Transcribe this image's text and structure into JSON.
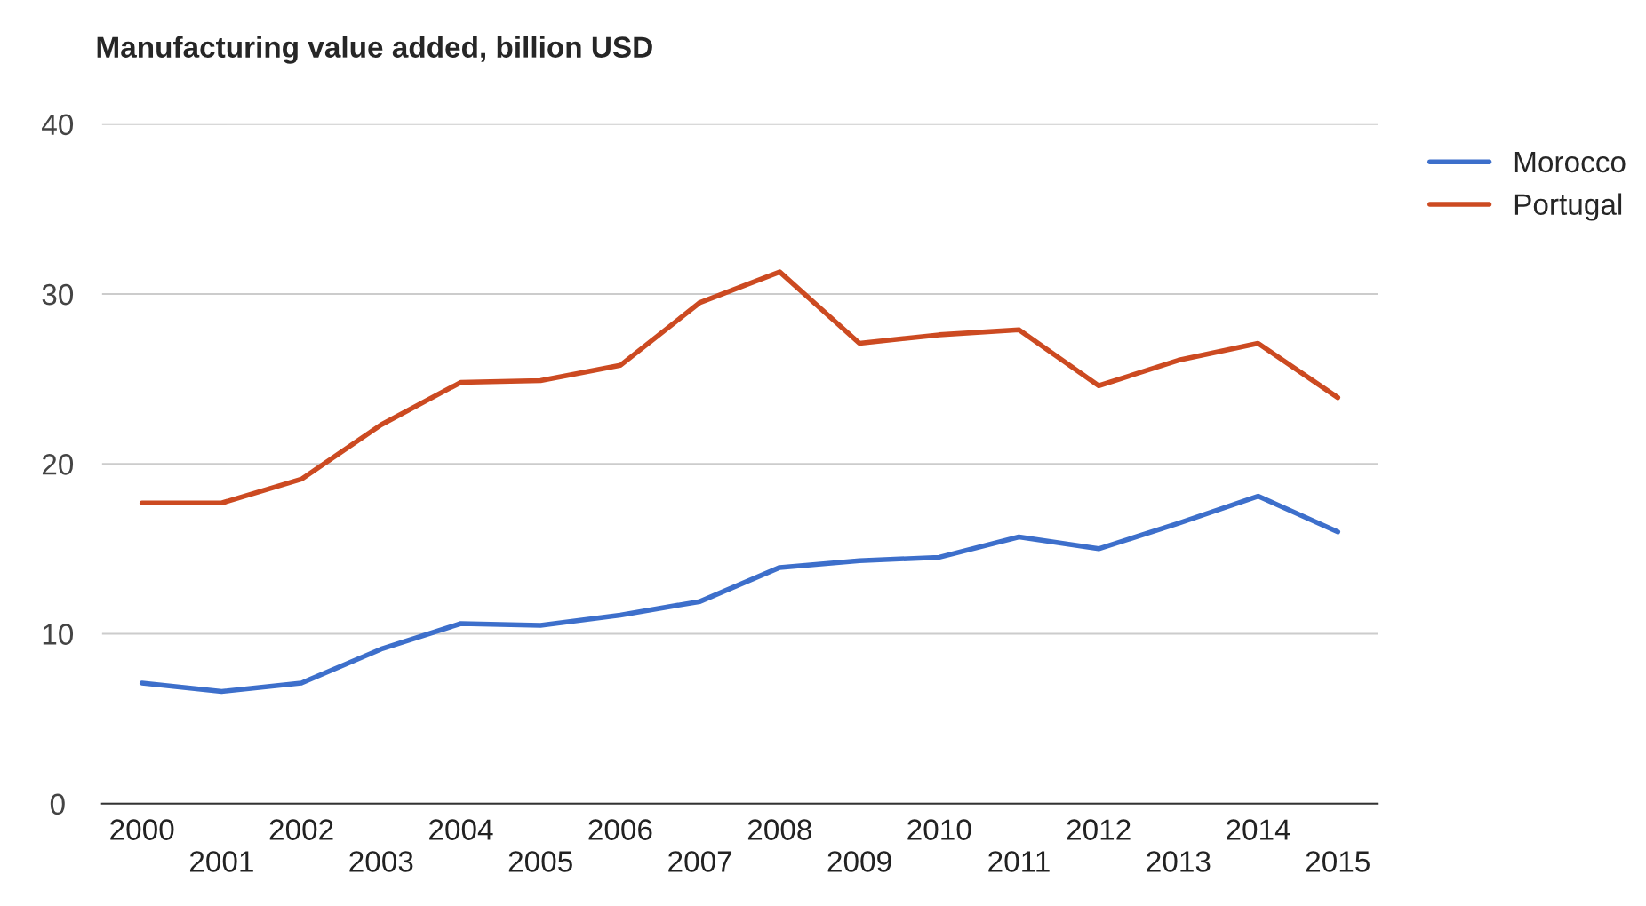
{
  "chart_data": {
    "type": "line",
    "title": "Manufacturing value added, billion USD",
    "categories": [
      "2000",
      "2001",
      "2002",
      "2003",
      "2004",
      "2005",
      "2006",
      "2007",
      "2008",
      "2009",
      "2010",
      "2011",
      "2012",
      "2013",
      "2014",
      "2015"
    ],
    "series": [
      {
        "name": "Morocco",
        "color": "#3d6fcb",
        "values": [
          7.1,
          6.6,
          7.1,
          9.1,
          10.6,
          10.5,
          11.1,
          11.9,
          13.9,
          14.3,
          14.5,
          15.7,
          15.0,
          16.5,
          18.1,
          16.0
        ]
      },
      {
        "name": "Portugal",
        "color": "#cc4a21",
        "values": [
          17.7,
          17.7,
          19.1,
          22.3,
          24.8,
          24.9,
          25.8,
          29.5,
          31.3,
          27.1,
          27.6,
          27.9,
          24.6,
          26.1,
          27.1,
          23.9
        ]
      }
    ],
    "ylim": [
      0,
      40
    ],
    "yticks": [
      0,
      10,
      20,
      30,
      40
    ],
    "grid": "y",
    "legend": "top right",
    "marker": "none",
    "line_style": "solid"
  }
}
